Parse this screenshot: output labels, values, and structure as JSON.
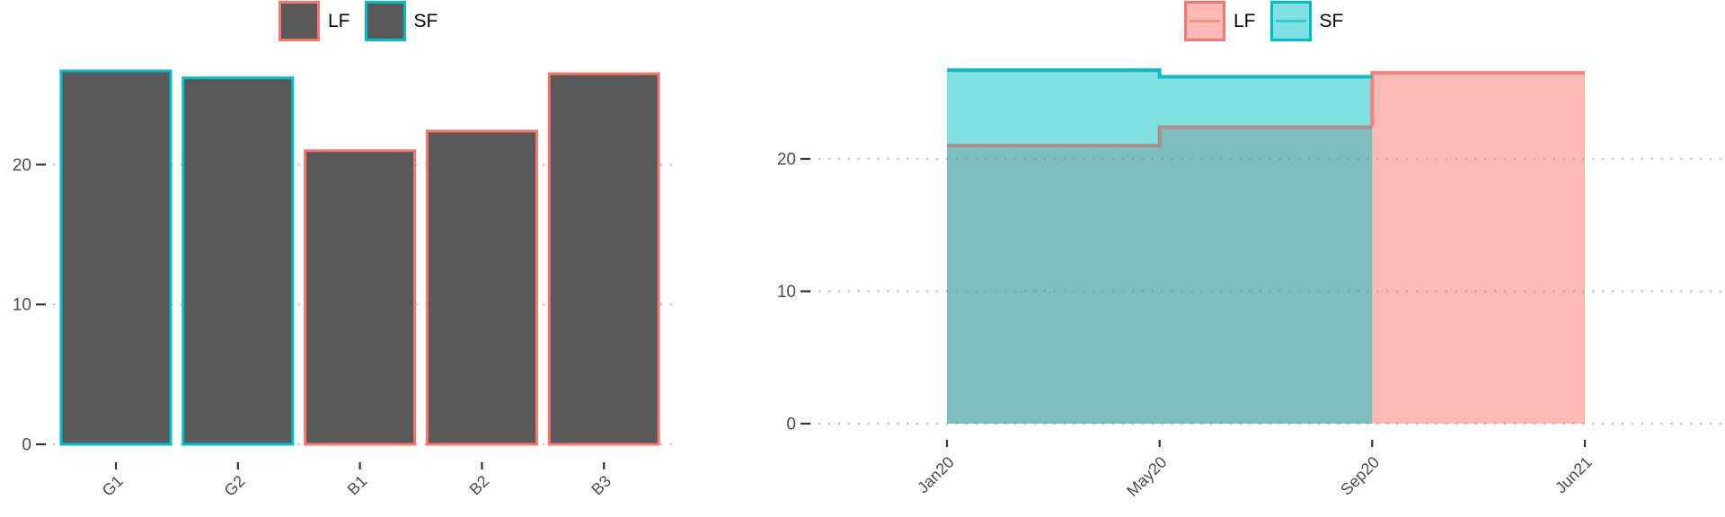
{
  "colors": {
    "lf": "#F8766D",
    "sf": "#00BFC4",
    "bar_fill": "#595959",
    "grid": "#C8C8C8",
    "axis_tick": "#333333",
    "axis_text": "#4D4D4D",
    "legend_text": "#000000",
    "lf_border_muted": "#B18C8A",
    "lf_border_bright": "#F8817A",
    "sf_border": "#10BDC2"
  },
  "chart_data": [
    {
      "id": "grouped-bar-chart",
      "type": "bar",
      "title": "",
      "legend": {
        "position": "top",
        "items": [
          {
            "label": "LF"
          },
          {
            "label": "SF"
          }
        ]
      },
      "categories": [
        "G1",
        "G2",
        "B1",
        "B2",
        "B3"
      ],
      "values": [
        26.7,
        26.2,
        21.0,
        22.4,
        26.5
      ],
      "bar_series": [
        "SF",
        "SF",
        "LF",
        "LF",
        "LF"
      ],
      "xlabel": "",
      "ylabel": "",
      "yticks": [
        0,
        10,
        20
      ],
      "ylim": [
        0,
        28.2
      ],
      "grid": "dotted-horizontal"
    },
    {
      "id": "step-area-chart",
      "type": "area",
      "title": "",
      "legend": {
        "position": "top",
        "items": [
          {
            "label": "LF"
          },
          {
            "label": "SF"
          }
        ]
      },
      "x_ticklabels": [
        "Jan20",
        "May20",
        "Sep20",
        "Jun21"
      ],
      "series": [
        {
          "name": "LF",
          "x": [
            "Jan20",
            "May20",
            "Sep20",
            "Jun21"
          ],
          "values": [
            21.0,
            22.4,
            26.5,
            26.5
          ],
          "step": true
        },
        {
          "name": "SF",
          "x": [
            "Jan20",
            "May20",
            "Sep20"
          ],
          "values": [
            26.7,
            26.2,
            26.2
          ],
          "step": true
        }
      ],
      "xlabel": "",
      "ylabel": "",
      "yticks": [
        0,
        10,
        20
      ],
      "ylim": [
        0,
        28.2
      ],
      "grid": "dotted-horizontal"
    }
  ]
}
